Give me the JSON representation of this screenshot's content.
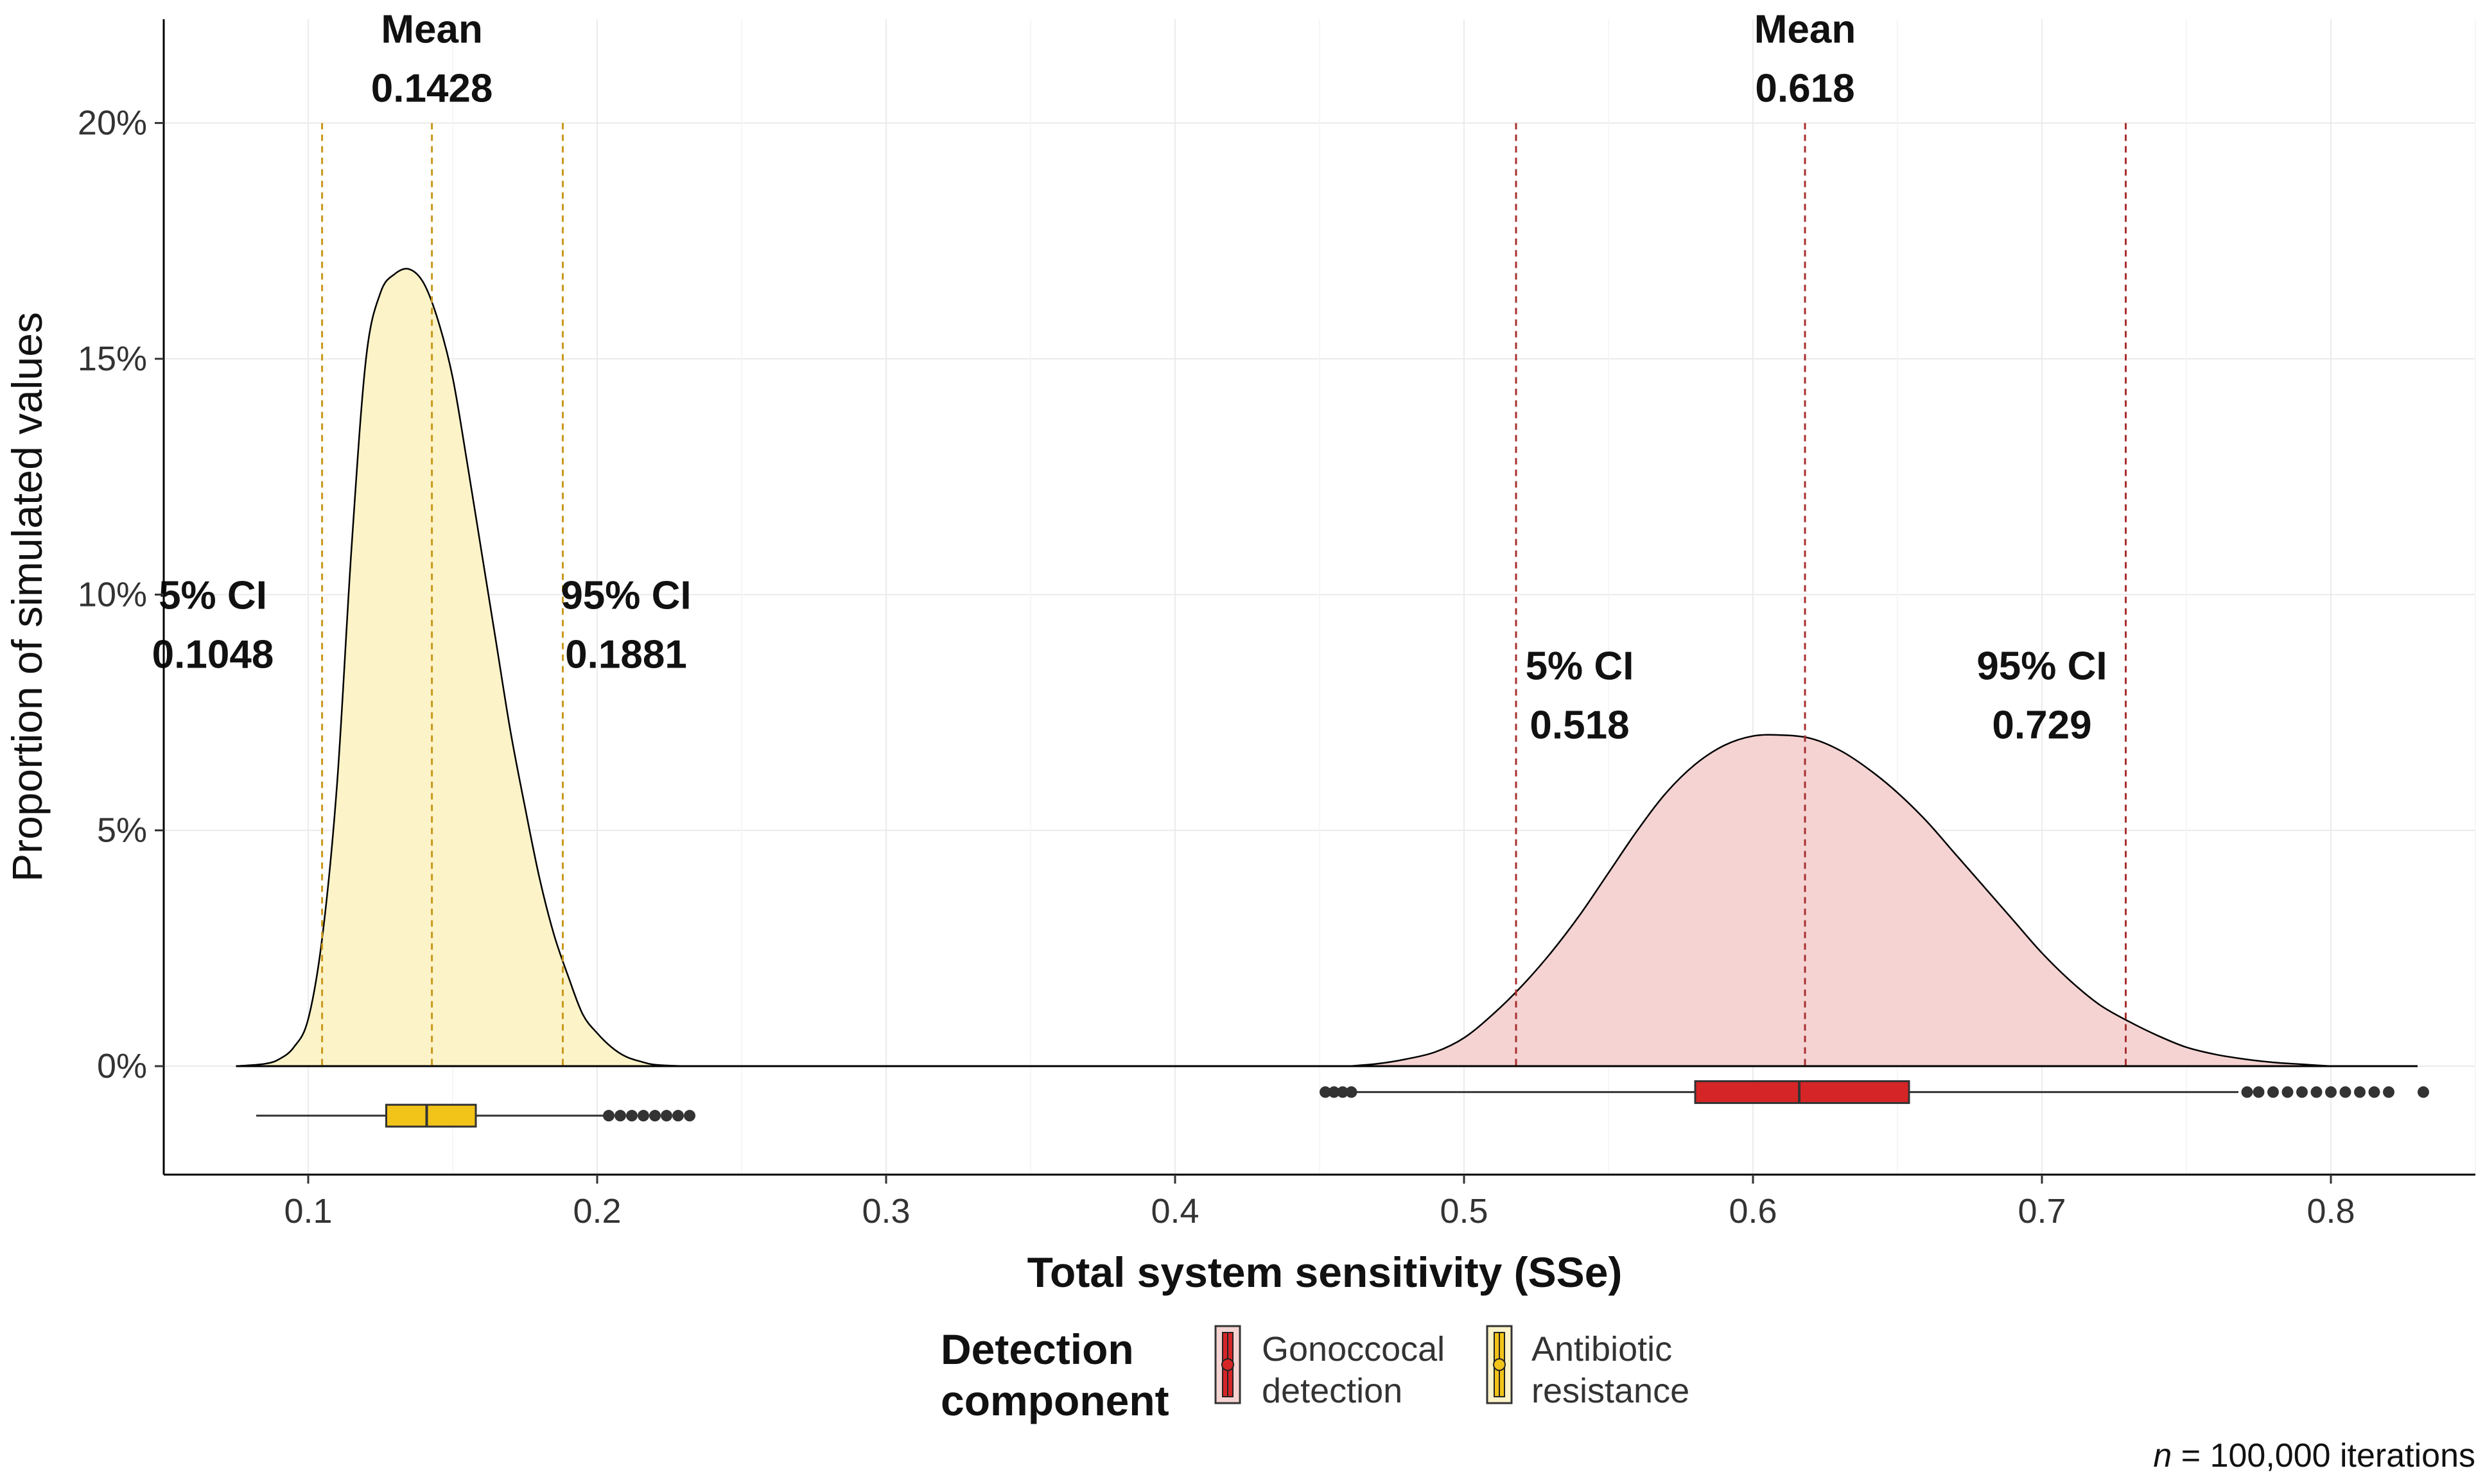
{
  "chart_data": {
    "type": "density",
    "title": "",
    "xlabel": "Total system sensitivity (SSe)",
    "ylabel": "Proportion of simulated values",
    "xlim": [
      0.05,
      0.85
    ],
    "ylim": [
      -0.023,
      0.222
    ],
    "x_ticks": [
      0.1,
      0.2,
      0.3,
      0.4,
      0.5,
      0.6,
      0.7,
      0.8
    ],
    "x_tick_labels": [
      "0.1",
      "0.2",
      "0.3",
      "0.4",
      "0.5",
      "0.6",
      "0.7",
      "0.8"
    ],
    "y_ticks": [
      0,
      0.05,
      0.1,
      0.15,
      0.2
    ],
    "y_tick_labels": [
      "0%",
      "5%",
      "10%",
      "15%",
      "20%"
    ],
    "grid": true,
    "legend": {
      "title": [
        "Detection",
        "component"
      ],
      "position": "bottom"
    },
    "caption": {
      "italic": "n",
      "rest": " = 100,000 iterations"
    },
    "series": [
      {
        "name": "Antibiotic resistance",
        "label_lines": [
          "Antibiotic",
          "resistance"
        ],
        "fill": "#fcf3c8",
        "line_color": "#c9981c",
        "box_color": "#f2c318",
        "density": {
          "x": [
            0.075,
            0.085,
            0.09,
            0.095,
            0.1,
            0.105,
            0.11,
            0.115,
            0.12,
            0.125,
            0.13,
            0.135,
            0.14,
            0.145,
            0.15,
            0.155,
            0.16,
            0.165,
            0.17,
            0.175,
            0.18,
            0.185,
            0.19,
            0.195,
            0.2,
            0.205,
            0.21,
            0.215,
            0.22,
            0.23
          ],
          "y": [
            0,
            0.0005,
            0.0015,
            0.004,
            0.01,
            0.028,
            0.06,
            0.11,
            0.15,
            0.164,
            0.168,
            0.169,
            0.166,
            0.158,
            0.146,
            0.128,
            0.109,
            0.09,
            0.071,
            0.055,
            0.04,
            0.028,
            0.019,
            0.011,
            0.007,
            0.004,
            0.002,
            0.001,
            0.0003,
            0
          ]
        },
        "boxplot": {
          "whisker_low": 0.082,
          "q1": 0.127,
          "median": 0.141,
          "q3": 0.158,
          "whisker_high": 0.203,
          "outliers": [
            0.204,
            0.208,
            0.212,
            0.216,
            0.22,
            0.224,
            0.228,
            0.232
          ]
        },
        "annotations": [
          {
            "lines": [
              "Mean",
              "0.1428"
            ],
            "x": 0.1428,
            "y": 0.217
          },
          {
            "lines": [
              "5% CI",
              "0.1048"
            ],
            "x": 0.067,
            "y": 0.097
          },
          {
            "lines": [
              "95% CI",
              "0.1881"
            ],
            "x": 0.21,
            "y": 0.097
          }
        ],
        "vlines": [
          0.1048,
          0.1428,
          0.1881
        ]
      },
      {
        "name": "Gonoccocal detection",
        "label_lines": [
          "Gonoccocal",
          "detection"
        ],
        "fill": "#f5d3d3",
        "line_color": "#a83030",
        "box_color": "#d62526",
        "density": {
          "x": [
            0.46,
            0.47,
            0.48,
            0.49,
            0.5,
            0.51,
            0.52,
            0.53,
            0.54,
            0.55,
            0.56,
            0.57,
            0.58,
            0.59,
            0.6,
            0.61,
            0.62,
            0.63,
            0.64,
            0.65,
            0.66,
            0.67,
            0.68,
            0.69,
            0.7,
            0.71,
            0.72,
            0.73,
            0.74,
            0.75,
            0.76,
            0.77,
            0.78,
            0.79,
            0.8
          ],
          "y": [
            0,
            0.0005,
            0.0015,
            0.003,
            0.006,
            0.011,
            0.017,
            0.024,
            0.032,
            0.041,
            0.05,
            0.058,
            0.064,
            0.068,
            0.07,
            0.0702,
            0.0695,
            0.067,
            0.063,
            0.058,
            0.052,
            0.045,
            0.038,
            0.031,
            0.024,
            0.018,
            0.013,
            0.0095,
            0.0065,
            0.004,
            0.0025,
            0.0015,
            0.0008,
            0.0004,
            0
          ]
        },
        "boxplot": {
          "whisker_low": 0.462,
          "q1": 0.58,
          "median": 0.616,
          "q3": 0.654,
          "whisker_high": 0.768,
          "outliers": [
            0.452,
            0.455,
            0.458,
            0.461,
            0.771,
            0.775,
            0.78,
            0.785,
            0.79,
            0.795,
            0.8,
            0.805,
            0.81,
            0.815,
            0.82,
            0.832
          ]
        },
        "annotations": [
          {
            "lines": [
              "Mean",
              "0.618"
            ],
            "x": 0.618,
            "y": 0.217
          },
          {
            "lines": [
              "5% CI",
              "0.518"
            ],
            "x": 0.54,
            "y": 0.082
          },
          {
            "lines": [
              "95% CI",
              "0.729"
            ],
            "x": 0.7,
            "y": 0.082
          }
        ],
        "vlines": [
          0.518,
          0.618,
          0.729
        ]
      }
    ]
  }
}
